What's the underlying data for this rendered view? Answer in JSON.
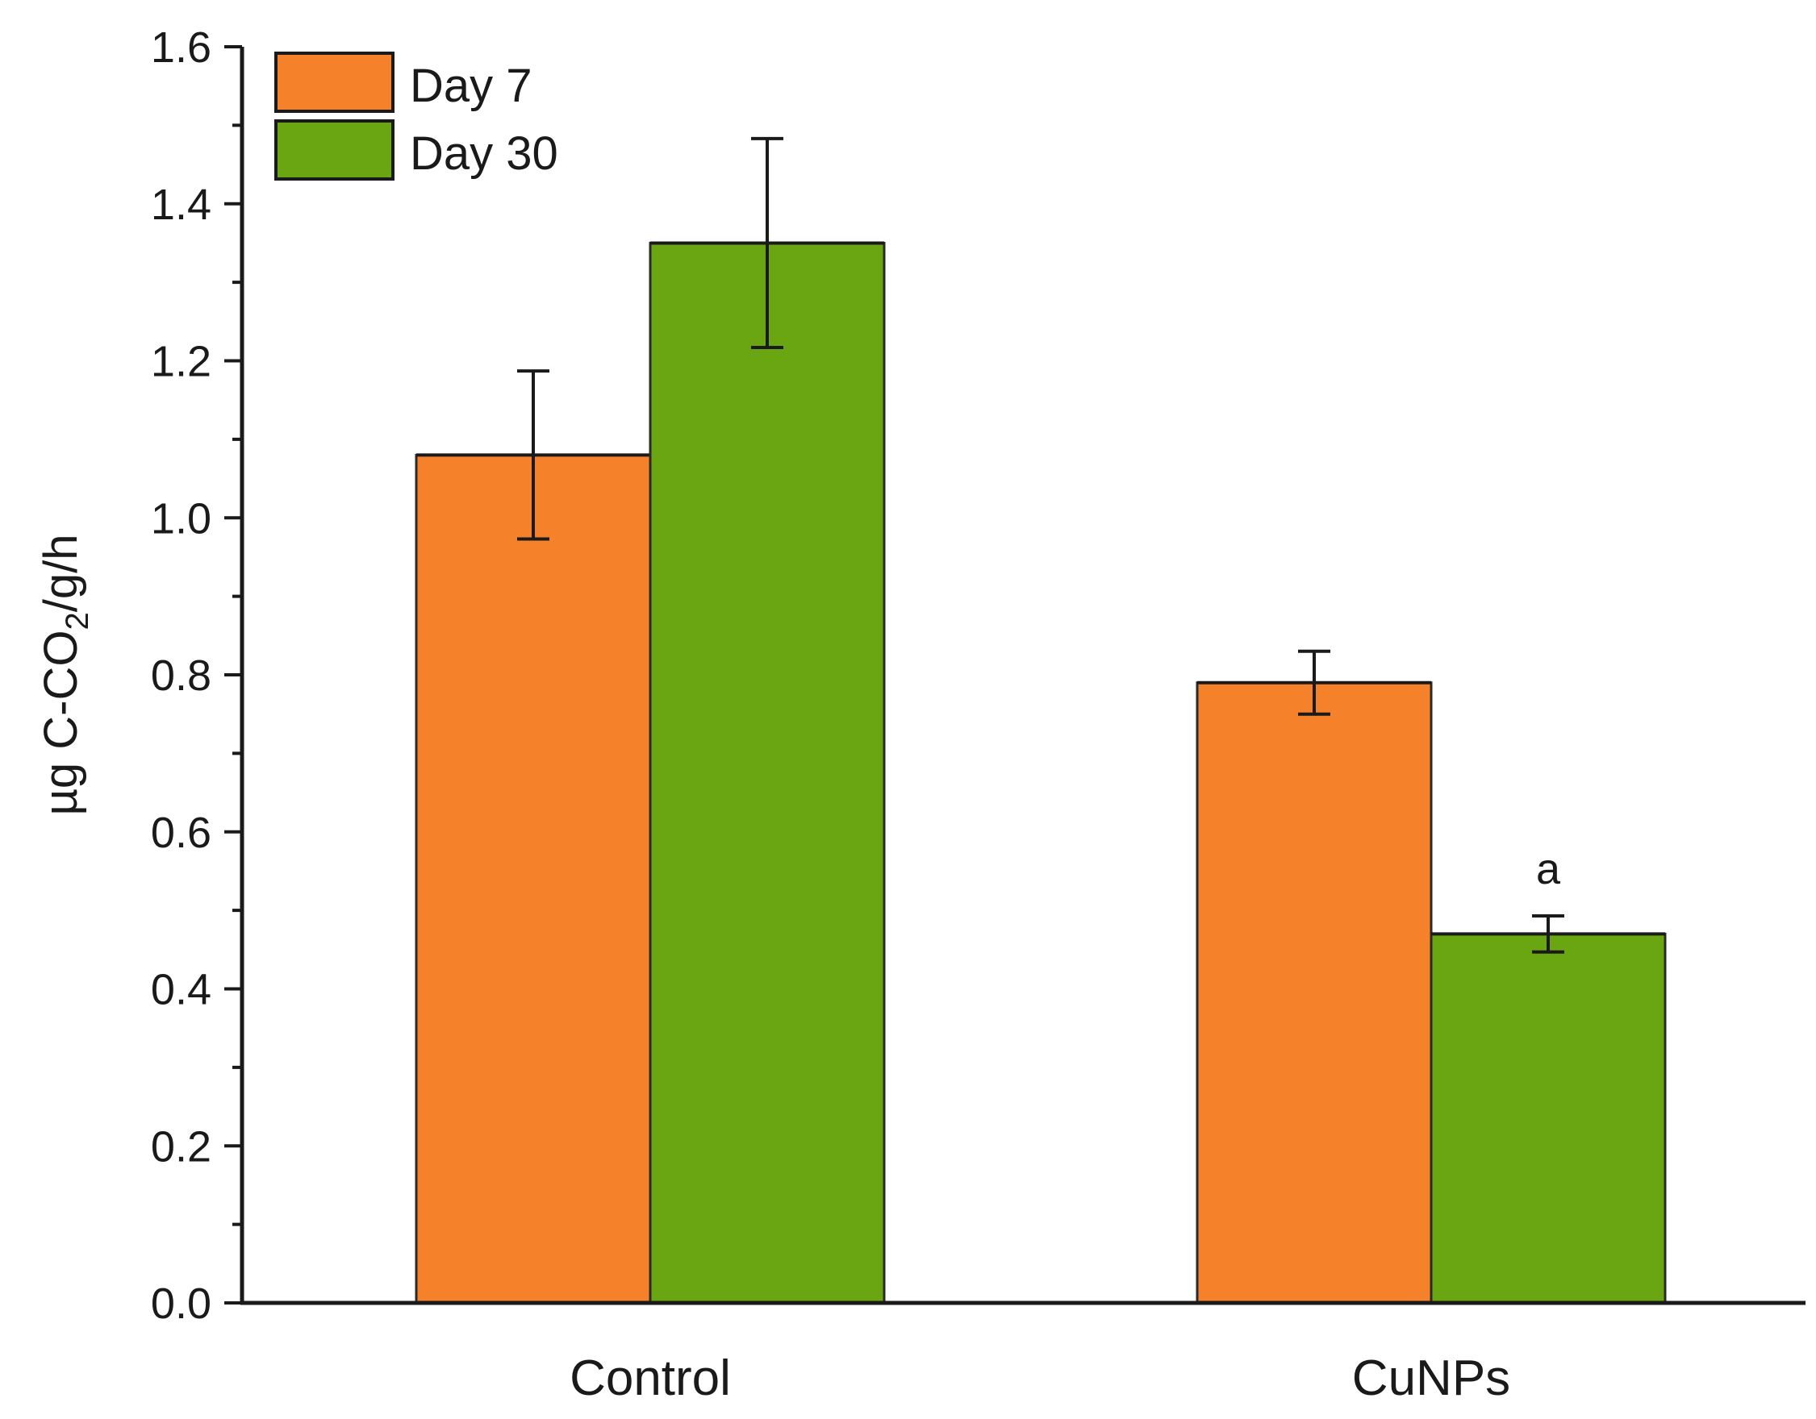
{
  "chart_data": {
    "type": "bar",
    "title": "",
    "xlabel": "",
    "ylabel": {
      "prefix": "µg C-CO",
      "subscript": "2",
      "suffix": "/g/h"
    },
    "ylim": [
      0,
      1.6
    ],
    "yticks": [
      "0.0",
      "0.2",
      "0.4",
      "0.6",
      "0.8",
      "1.0",
      "1.2",
      "1.4",
      "1.6"
    ],
    "categories": [
      "Control",
      "CuNPs"
    ],
    "series": [
      {
        "name": "Day 7",
        "color": "#f5822a",
        "values": [
          1.08,
          0.79
        ],
        "errors": [
          0.107,
          0.04
        ]
      },
      {
        "name": "Day 30",
        "color": "#6aa612",
        "values": [
          1.35,
          0.47
        ],
        "errors": [
          0.133,
          0.023
        ]
      }
    ],
    "annotations": [
      {
        "text": "a",
        "category": "CuNPs",
        "series": "Day 30"
      }
    ],
    "legend_position": "top-left"
  }
}
